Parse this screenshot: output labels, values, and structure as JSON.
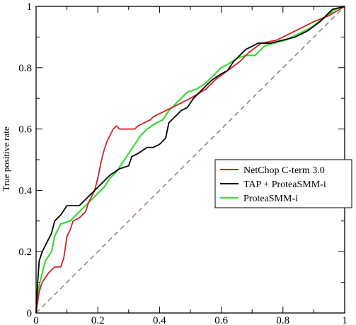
{
  "chart_data": {
    "type": "line",
    "title": "",
    "xlabel": "",
    "ylabel": "True positive rate",
    "xlim": [
      0,
      1
    ],
    "ylim": [
      0,
      1
    ],
    "x_ticks": [
      "0",
      "0.2",
      "0.4",
      "0.6",
      "0.8",
      "1"
    ],
    "y_ticks": [
      "0",
      "0.2",
      "0.4",
      "0.6",
      "0.8",
      "1"
    ],
    "grid": false,
    "legend": "right",
    "diagonal": {
      "color": "#a08080",
      "dashed": true
    },
    "series": [
      {
        "name": "NetChop C-term 3.0",
        "color": "#d62020",
        "points": [
          [
            0,
            0
          ],
          [
            0.01,
            0.07
          ],
          [
            0.02,
            0.1
          ],
          [
            0.04,
            0.13
          ],
          [
            0.06,
            0.15
          ],
          [
            0.08,
            0.15
          ],
          [
            0.09,
            0.18
          ],
          [
            0.1,
            0.25
          ],
          [
            0.11,
            0.27
          ],
          [
            0.12,
            0.3
          ],
          [
            0.14,
            0.31
          ],
          [
            0.16,
            0.33
          ],
          [
            0.17,
            0.36
          ],
          [
            0.19,
            0.4
          ],
          [
            0.2,
            0.44
          ],
          [
            0.21,
            0.49
          ],
          [
            0.22,
            0.53
          ],
          [
            0.23,
            0.56
          ],
          [
            0.24,
            0.58
          ],
          [
            0.25,
            0.6
          ],
          [
            0.26,
            0.61
          ],
          [
            0.27,
            0.6
          ],
          [
            0.3,
            0.6
          ],
          [
            0.32,
            0.6
          ],
          [
            0.33,
            0.61
          ],
          [
            0.35,
            0.62
          ],
          [
            0.37,
            0.63
          ],
          [
            0.38,
            0.64
          ],
          [
            0.42,
            0.66
          ],
          [
            0.46,
            0.68
          ],
          [
            0.5,
            0.7
          ],
          [
            0.55,
            0.73
          ],
          [
            0.58,
            0.76
          ],
          [
            0.62,
            0.79
          ],
          [
            0.66,
            0.82
          ],
          [
            0.69,
            0.85
          ],
          [
            0.73,
            0.88
          ],
          [
            0.78,
            0.89
          ],
          [
            0.82,
            0.91
          ],
          [
            0.86,
            0.93
          ],
          [
            0.9,
            0.95
          ],
          [
            0.95,
            0.97
          ],
          [
            1,
            1
          ]
        ]
      },
      {
        "name": "TAP + ProteaSMM-i",
        "color": "#000000",
        "points": [
          [
            0,
            0
          ],
          [
            0.005,
            0.1
          ],
          [
            0.01,
            0.17
          ],
          [
            0.02,
            0.2
          ],
          [
            0.03,
            0.22
          ],
          [
            0.05,
            0.26
          ],
          [
            0.06,
            0.3
          ],
          [
            0.08,
            0.32
          ],
          [
            0.1,
            0.35
          ],
          [
            0.12,
            0.35
          ],
          [
            0.14,
            0.35
          ],
          [
            0.16,
            0.37
          ],
          [
            0.18,
            0.39
          ],
          [
            0.2,
            0.41
          ],
          [
            0.22,
            0.43
          ],
          [
            0.24,
            0.45
          ],
          [
            0.27,
            0.47
          ],
          [
            0.3,
            0.48
          ],
          [
            0.31,
            0.51
          ],
          [
            0.33,
            0.52
          ],
          [
            0.36,
            0.54
          ],
          [
            0.38,
            0.54
          ],
          [
            0.4,
            0.55
          ],
          [
            0.42,
            0.57
          ],
          [
            0.43,
            0.62
          ],
          [
            0.45,
            0.64
          ],
          [
            0.47,
            0.66
          ],
          [
            0.49,
            0.67
          ],
          [
            0.51,
            0.7
          ],
          [
            0.53,
            0.72
          ],
          [
            0.55,
            0.74
          ],
          [
            0.57,
            0.76
          ],
          [
            0.6,
            0.78
          ],
          [
            0.62,
            0.79
          ],
          [
            0.64,
            0.82
          ],
          [
            0.66,
            0.84
          ],
          [
            0.68,
            0.86
          ],
          [
            0.72,
            0.88
          ],
          [
            0.76,
            0.88
          ],
          [
            0.8,
            0.89
          ],
          [
            0.84,
            0.9
          ],
          [
            0.88,
            0.92
          ],
          [
            0.92,
            0.95
          ],
          [
            0.96,
            0.99
          ],
          [
            1,
            1
          ]
        ]
      },
      {
        "name": "ProteaSMM-i",
        "color": "#33dd33",
        "points": [
          [
            0,
            0
          ],
          [
            0.005,
            0.05
          ],
          [
            0.01,
            0.09
          ],
          [
            0.02,
            0.13
          ],
          [
            0.03,
            0.17
          ],
          [
            0.05,
            0.2
          ],
          [
            0.06,
            0.25
          ],
          [
            0.08,
            0.29
          ],
          [
            0.11,
            0.3
          ],
          [
            0.13,
            0.32
          ],
          [
            0.15,
            0.34
          ],
          [
            0.18,
            0.37
          ],
          [
            0.2,
            0.39
          ],
          [
            0.22,
            0.41
          ],
          [
            0.24,
            0.44
          ],
          [
            0.26,
            0.46
          ],
          [
            0.28,
            0.49
          ],
          [
            0.3,
            0.52
          ],
          [
            0.32,
            0.55
          ],
          [
            0.34,
            0.58
          ],
          [
            0.36,
            0.6
          ],
          [
            0.39,
            0.62
          ],
          [
            0.41,
            0.63
          ],
          [
            0.43,
            0.66
          ],
          [
            0.45,
            0.68
          ],
          [
            0.47,
            0.7
          ],
          [
            0.49,
            0.72
          ],
          [
            0.52,
            0.73
          ],
          [
            0.55,
            0.75
          ],
          [
            0.58,
            0.78
          ],
          [
            0.6,
            0.8
          ],
          [
            0.62,
            0.81
          ],
          [
            0.65,
            0.83
          ],
          [
            0.68,
            0.84
          ],
          [
            0.71,
            0.84
          ],
          [
            0.74,
            0.87
          ],
          [
            0.77,
            0.88
          ],
          [
            0.81,
            0.89
          ],
          [
            0.85,
            0.91
          ],
          [
            0.89,
            0.93
          ],
          [
            0.93,
            0.96
          ],
          [
            0.97,
            0.99
          ],
          [
            1,
            1
          ]
        ]
      }
    ]
  }
}
